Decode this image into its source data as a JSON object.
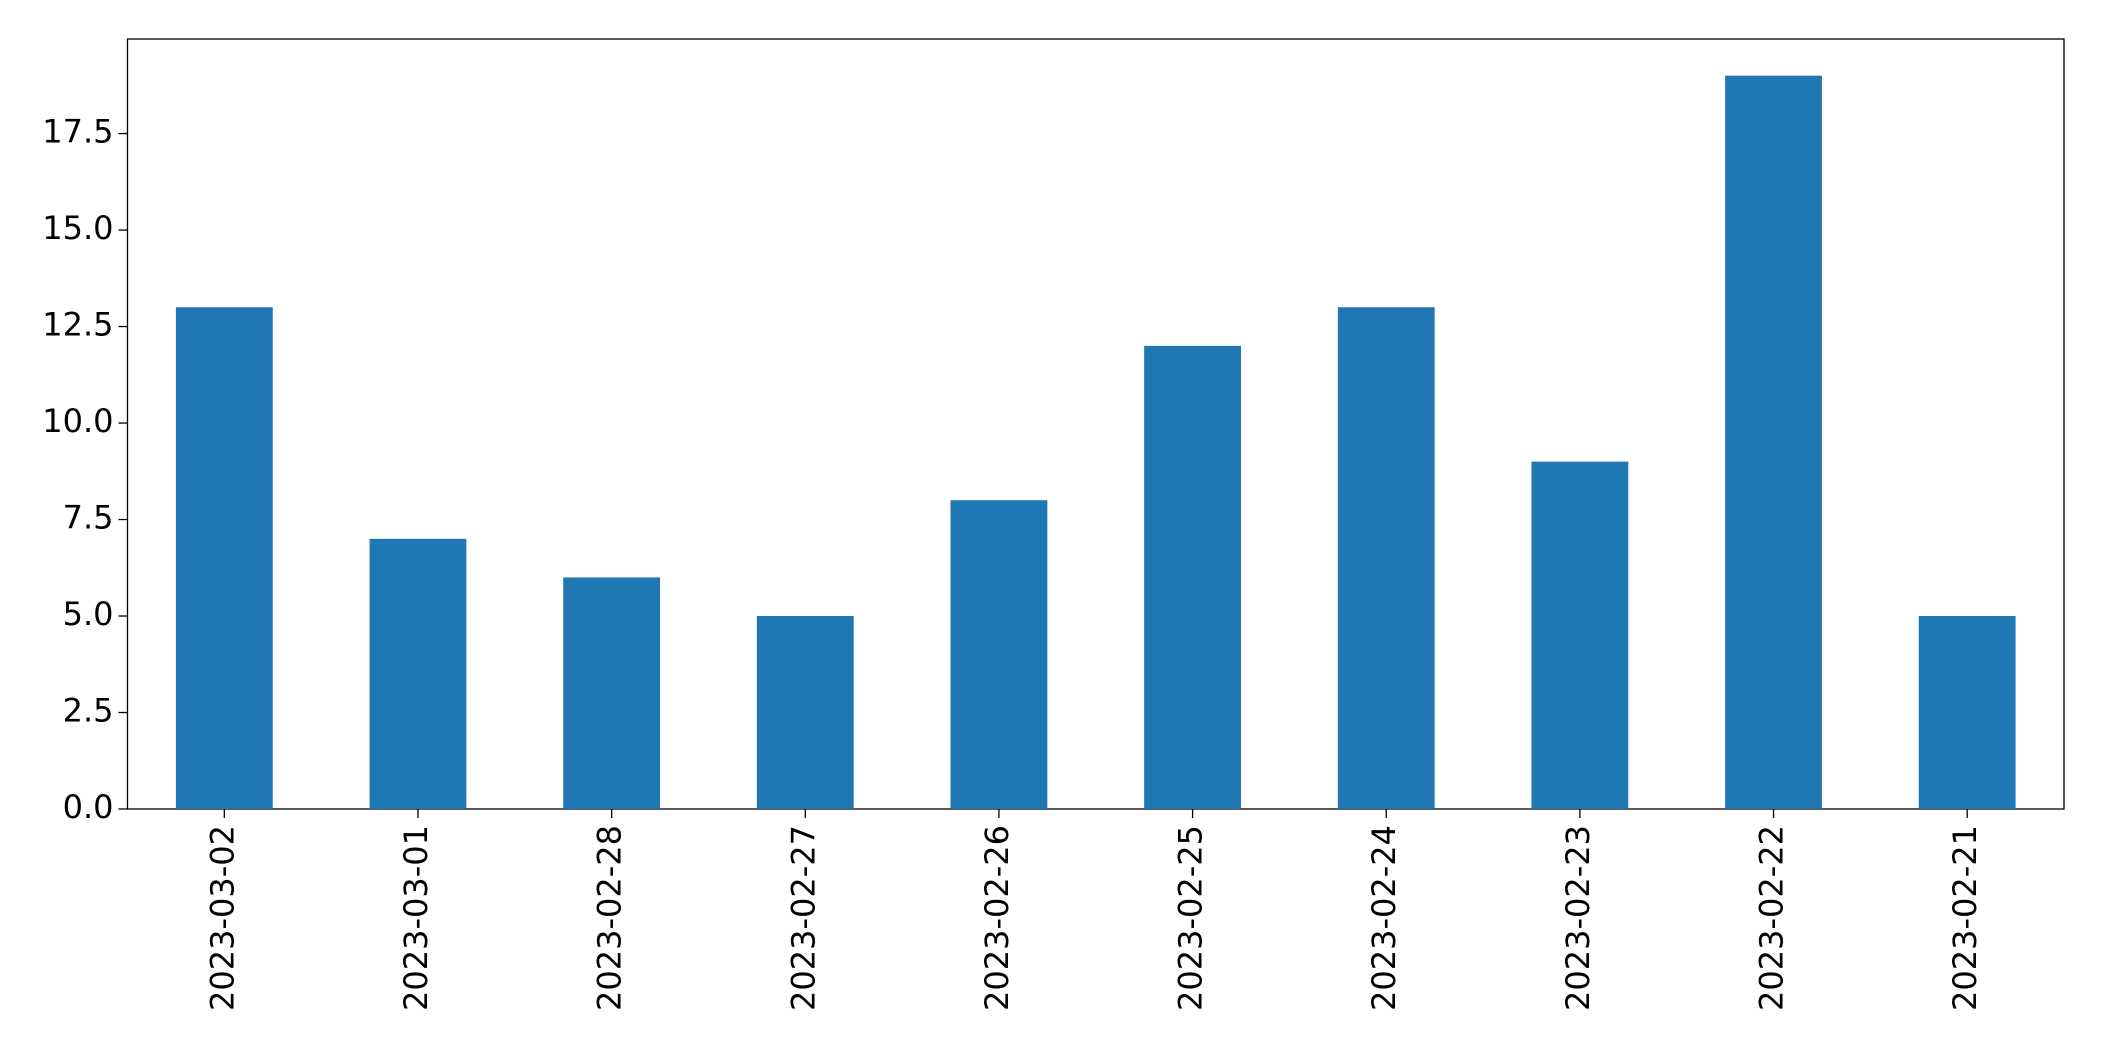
{
  "chart_data": {
    "type": "bar",
    "categories": [
      "2023-03-02",
      "2023-03-01",
      "2023-02-28",
      "2023-02-27",
      "2023-02-26",
      "2023-02-25",
      "2023-02-24",
      "2023-02-23",
      "2023-02-22",
      "2023-02-21"
    ],
    "values": [
      13,
      7,
      6,
      5,
      8,
      12,
      13,
      9,
      19,
      5
    ],
    "color": "#1f77b4",
    "ylim": [
      0,
      19.95
    ],
    "yticks": [
      {
        "value": 0,
        "label": "0.0"
      },
      2.5,
      {
        "value": 5,
        "label": "5.0"
      },
      7.5,
      {
        "value": 10,
        "label": "10.0"
      },
      12.5,
      {
        "value": 15,
        "label": "15.0"
      },
      17.5
    ],
    "grid": false
  }
}
